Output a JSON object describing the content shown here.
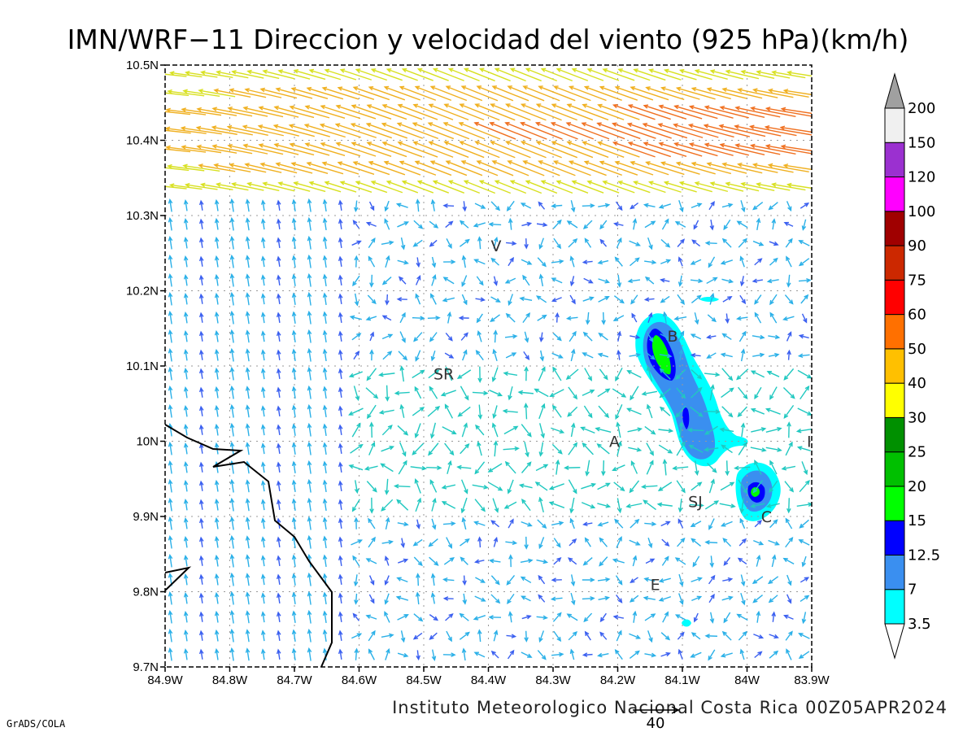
{
  "title": "IMN/WRF−11 Direccion y velocidad del viento (925 hPa)(km/h)",
  "footer": {
    "institution": "Instituto Meteorologico Nacional Costa Rica 00Z05APR2024",
    "software": "GrADS/COLA",
    "ref_vector_label": "40"
  },
  "axes": {
    "x_ticks": [
      "84.9W",
      "84.8W",
      "84.7W",
      "84.6W",
      "84.5W",
      "84.4W",
      "84.3W",
      "84.2W",
      "84.1W",
      "84W",
      "83.9W"
    ],
    "y_ticks": [
      "10.5N",
      "10.4N",
      "10.3N",
      "10.2N",
      "10.1N",
      "10N",
      "9.9N",
      "9.8N",
      "9.7N"
    ]
  },
  "chart_data": {
    "type": "wind vector field with speed contours",
    "xlim": [
      -84.9,
      -83.9
    ],
    "ylim": [
      9.7,
      10.5
    ],
    "x_tick_values": [
      -84.9,
      -84.8,
      -84.7,
      -84.6,
      -84.5,
      -84.4,
      -84.3,
      -84.2,
      -84.1,
      -84.0,
      -83.9
    ],
    "y_tick_values": [
      10.5,
      10.4,
      10.3,
      10.2,
      10.1,
      10.0,
      9.9,
      9.8,
      9.7
    ],
    "grid": true,
    "colorbar": {
      "levels": [
        "3.5",
        "7",
        "12.5",
        "15",
        "20",
        "25",
        "30",
        "40",
        "50",
        "60",
        "75",
        "90",
        "100",
        "120",
        "150",
        "200"
      ],
      "colors": [
        "#00ffff",
        "#3a8ff0",
        "#0000ff",
        "#00ff00",
        "#00c000",
        "#009000",
        "#ffff00",
        "#ffc000",
        "#ff7000",
        "#ff0000",
        "#cc2800",
        "#a00000",
        "#ff00ff",
        "#9b30d0",
        "#f0f0f0",
        "#a0a0a0"
      ]
    },
    "place_labels": [
      {
        "text": "V",
        "lon": -84.388,
        "lat": 10.26
      },
      {
        "text": "B",
        "lon": -84.115,
        "lat": 10.14
      },
      {
        "text": "SR",
        "lon": -84.469,
        "lat": 10.09
      },
      {
        "text": "A",
        "lon": -84.205,
        "lat": 10.0
      },
      {
        "text": "I",
        "lon": -83.904,
        "lat": 10.0
      },
      {
        "text": "SJ",
        "lon": -84.08,
        "lat": 9.92
      },
      {
        "text": "C",
        "lon": -83.97,
        "lat": 9.9
      },
      {
        "text": "E",
        "lon": -84.142,
        "lat": 9.81
      }
    ],
    "speed_maxima": [
      {
        "lon": -84.13,
        "lat": 10.11,
        "max_kmh": 20
      },
      {
        "lon": -83.98,
        "lat": 9.93,
        "max_kmh": 20
      }
    ],
    "jet": {
      "description": "strong easterly-to-southwesterly flow along northern edge",
      "max_kmh": 60
    }
  },
  "colors": {
    "axis": "#000000",
    "grid": "#999999",
    "coast": "#000000"
  }
}
